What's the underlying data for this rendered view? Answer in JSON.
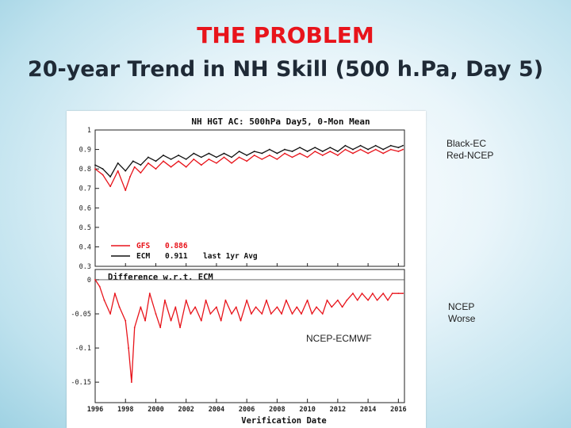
{
  "slide": {
    "title_line1": "THE PROBLEM",
    "title_line2": "20-year Trend in NH Skill (500 h.Pa, Day 5)",
    "note_legend_line1": "Black-EC",
    "note_legend_line2": "Red-NCEP",
    "note_worse_line1": "NCEP",
    "note_worse_line2": "Worse",
    "note_diff": "NCEP-ECMWF"
  },
  "colors": {
    "ncep": "#e8141b",
    "ecmwf": "#111111",
    "grid": "#555555"
  },
  "chart_data": [
    {
      "type": "line",
      "title": "NH HGT AC: 500hPa Day5, 0-Mon Mean",
      "xlabel": "Verification Date",
      "xlim": [
        1996,
        2016.4
      ],
      "x_ticks": [
        1996,
        1998,
        2000,
        2002,
        2004,
        2006,
        2008,
        2010,
        2012,
        2014,
        2016
      ],
      "ylim": [
        0.3,
        1.0
      ],
      "y_ticks": [
        "1",
        "0.9",
        "0.8",
        "0.7",
        "0.6",
        "0.5",
        "0.4",
        "0.3"
      ],
      "y_tick_values": [
        1.0,
        0.9,
        0.8,
        0.7,
        0.6,
        0.5,
        0.4,
        0.3
      ],
      "legend": [
        {
          "name": "GFS",
          "value": "0.886",
          "note": ""
        },
        {
          "name": "ECM",
          "value": "0.911",
          "note": "last 1yr Avg"
        }
      ],
      "series": [
        {
          "name": "ECM",
          "points": [
            [
              1996.0,
              0.82
            ],
            [
              1996.5,
              0.8
            ],
            [
              1997.0,
              0.76
            ],
            [
              1997.5,
              0.83
            ],
            [
              1998.0,
              0.79
            ],
            [
              1998.5,
              0.84
            ],
            [
              1999.0,
              0.82
            ],
            [
              1999.5,
              0.86
            ],
            [
              2000.0,
              0.84
            ],
            [
              2000.5,
              0.87
            ],
            [
              2001.0,
              0.85
            ],
            [
              2001.5,
              0.87
            ],
            [
              2002.0,
              0.85
            ],
            [
              2002.5,
              0.88
            ],
            [
              2003.0,
              0.86
            ],
            [
              2003.5,
              0.88
            ],
            [
              2004.0,
              0.86
            ],
            [
              2004.5,
              0.88
            ],
            [
              2005.0,
              0.86
            ],
            [
              2005.5,
              0.89
            ],
            [
              2006.0,
              0.87
            ],
            [
              2006.5,
              0.89
            ],
            [
              2007.0,
              0.88
            ],
            [
              2007.5,
              0.9
            ],
            [
              2008.0,
              0.88
            ],
            [
              2008.5,
              0.9
            ],
            [
              2009.0,
              0.89
            ],
            [
              2009.5,
              0.91
            ],
            [
              2010.0,
              0.89
            ],
            [
              2010.5,
              0.91
            ],
            [
              2011.0,
              0.89
            ],
            [
              2011.5,
              0.91
            ],
            [
              2012.0,
              0.89
            ],
            [
              2012.5,
              0.92
            ],
            [
              2013.0,
              0.9
            ],
            [
              2013.5,
              0.92
            ],
            [
              2014.0,
              0.9
            ],
            [
              2014.5,
              0.92
            ],
            [
              2015.0,
              0.9
            ],
            [
              2015.5,
              0.92
            ],
            [
              2016.0,
              0.91
            ],
            [
              2016.3,
              0.92
            ]
          ]
        },
        {
          "name": "GFS",
          "points": [
            [
              1996.0,
              0.8
            ],
            [
              1996.5,
              0.77
            ],
            [
              1997.0,
              0.71
            ],
            [
              1997.5,
              0.79
            ],
            [
              1998.0,
              0.69
            ],
            [
              1998.3,
              0.76
            ],
            [
              1998.6,
              0.81
            ],
            [
              1999.0,
              0.78
            ],
            [
              1999.5,
              0.83
            ],
            [
              2000.0,
              0.8
            ],
            [
              2000.5,
              0.84
            ],
            [
              2001.0,
              0.81
            ],
            [
              2001.5,
              0.84
            ],
            [
              2002.0,
              0.81
            ],
            [
              2002.5,
              0.85
            ],
            [
              2003.0,
              0.82
            ],
            [
              2003.5,
              0.85
            ],
            [
              2004.0,
              0.83
            ],
            [
              2004.5,
              0.86
            ],
            [
              2005.0,
              0.83
            ],
            [
              2005.5,
              0.86
            ],
            [
              2006.0,
              0.84
            ],
            [
              2006.5,
              0.87
            ],
            [
              2007.0,
              0.85
            ],
            [
              2007.5,
              0.87
            ],
            [
              2008.0,
              0.85
            ],
            [
              2008.5,
              0.88
            ],
            [
              2009.0,
              0.86
            ],
            [
              2009.5,
              0.88
            ],
            [
              2010.0,
              0.86
            ],
            [
              2010.5,
              0.89
            ],
            [
              2011.0,
              0.87
            ],
            [
              2011.5,
              0.89
            ],
            [
              2012.0,
              0.87
            ],
            [
              2012.5,
              0.9
            ],
            [
              2013.0,
              0.88
            ],
            [
              2013.5,
              0.9
            ],
            [
              2014.0,
              0.88
            ],
            [
              2014.5,
              0.9
            ],
            [
              2015.0,
              0.88
            ],
            [
              2015.5,
              0.9
            ],
            [
              2016.0,
              0.89
            ],
            [
              2016.3,
              0.9
            ]
          ]
        }
      ]
    },
    {
      "type": "line",
      "title": "Difference w.r.t. ECM",
      "xlabel": "Verification Date",
      "xlim": [
        1996,
        2016.4
      ],
      "x_ticks": [
        1996,
        1998,
        2000,
        2002,
        2004,
        2006,
        2008,
        2010,
        2012,
        2014,
        2016
      ],
      "x_tick_labels": [
        "1996",
        "1998",
        "2000",
        "2002",
        "2004",
        "2006",
        "2008",
        "2010",
        "2012",
        "2014",
        "2016"
      ],
      "ylim": [
        -0.18,
        0.015
      ],
      "y_ticks": [
        "0",
        "-0.05",
        "-0.1",
        "-0.15"
      ],
      "y_tick_values": [
        0.0,
        -0.05,
        -0.1,
        -0.15
      ],
      "series": [
        {
          "name": "GFS-ECM",
          "points": [
            [
              1996.0,
              0.0
            ],
            [
              1996.3,
              -0.01
            ],
            [
              1996.6,
              -0.03
            ],
            [
              1997.0,
              -0.05
            ],
            [
              1997.3,
              -0.02
            ],
            [
              1997.6,
              -0.04
            ],
            [
              1998.0,
              -0.06
            ],
            [
              1998.2,
              -0.1
            ],
            [
              1998.4,
              -0.15
            ],
            [
              1998.6,
              -0.07
            ],
            [
              1999.0,
              -0.04
            ],
            [
              1999.3,
              -0.06
            ],
            [
              1999.6,
              -0.02
            ],
            [
              2000.0,
              -0.05
            ],
            [
              2000.3,
              -0.07
            ],
            [
              2000.6,
              -0.03
            ],
            [
              2001.0,
              -0.06
            ],
            [
              2001.3,
              -0.04
            ],
            [
              2001.6,
              -0.07
            ],
            [
              2002.0,
              -0.03
            ],
            [
              2002.3,
              -0.05
            ],
            [
              2002.6,
              -0.04
            ],
            [
              2003.0,
              -0.06
            ],
            [
              2003.3,
              -0.03
            ],
            [
              2003.6,
              -0.05
            ],
            [
              2004.0,
              -0.04
            ],
            [
              2004.3,
              -0.06
            ],
            [
              2004.6,
              -0.03
            ],
            [
              2005.0,
              -0.05
            ],
            [
              2005.3,
              -0.04
            ],
            [
              2005.6,
              -0.06
            ],
            [
              2006.0,
              -0.03
            ],
            [
              2006.3,
              -0.05
            ],
            [
              2006.6,
              -0.04
            ],
            [
              2007.0,
              -0.05
            ],
            [
              2007.3,
              -0.03
            ],
            [
              2007.6,
              -0.05
            ],
            [
              2008.0,
              -0.04
            ],
            [
              2008.3,
              -0.05
            ],
            [
              2008.6,
              -0.03
            ],
            [
              2009.0,
              -0.05
            ],
            [
              2009.3,
              -0.04
            ],
            [
              2009.6,
              -0.05
            ],
            [
              2010.0,
              -0.03
            ],
            [
              2010.3,
              -0.05
            ],
            [
              2010.6,
              -0.04
            ],
            [
              2011.0,
              -0.05
            ],
            [
              2011.3,
              -0.03
            ],
            [
              2011.6,
              -0.04
            ],
            [
              2012.0,
              -0.03
            ],
            [
              2012.3,
              -0.04
            ],
            [
              2012.6,
              -0.03
            ],
            [
              2013.0,
              -0.02
            ],
            [
              2013.3,
              -0.03
            ],
            [
              2013.6,
              -0.02
            ],
            [
              2014.0,
              -0.03
            ],
            [
              2014.3,
              -0.02
            ],
            [
              2014.6,
              -0.03
            ],
            [
              2015.0,
              -0.02
            ],
            [
              2015.3,
              -0.03
            ],
            [
              2015.6,
              -0.02
            ],
            [
              2016.0,
              -0.02
            ],
            [
              2016.3,
              -0.02
            ]
          ]
        }
      ]
    }
  ]
}
